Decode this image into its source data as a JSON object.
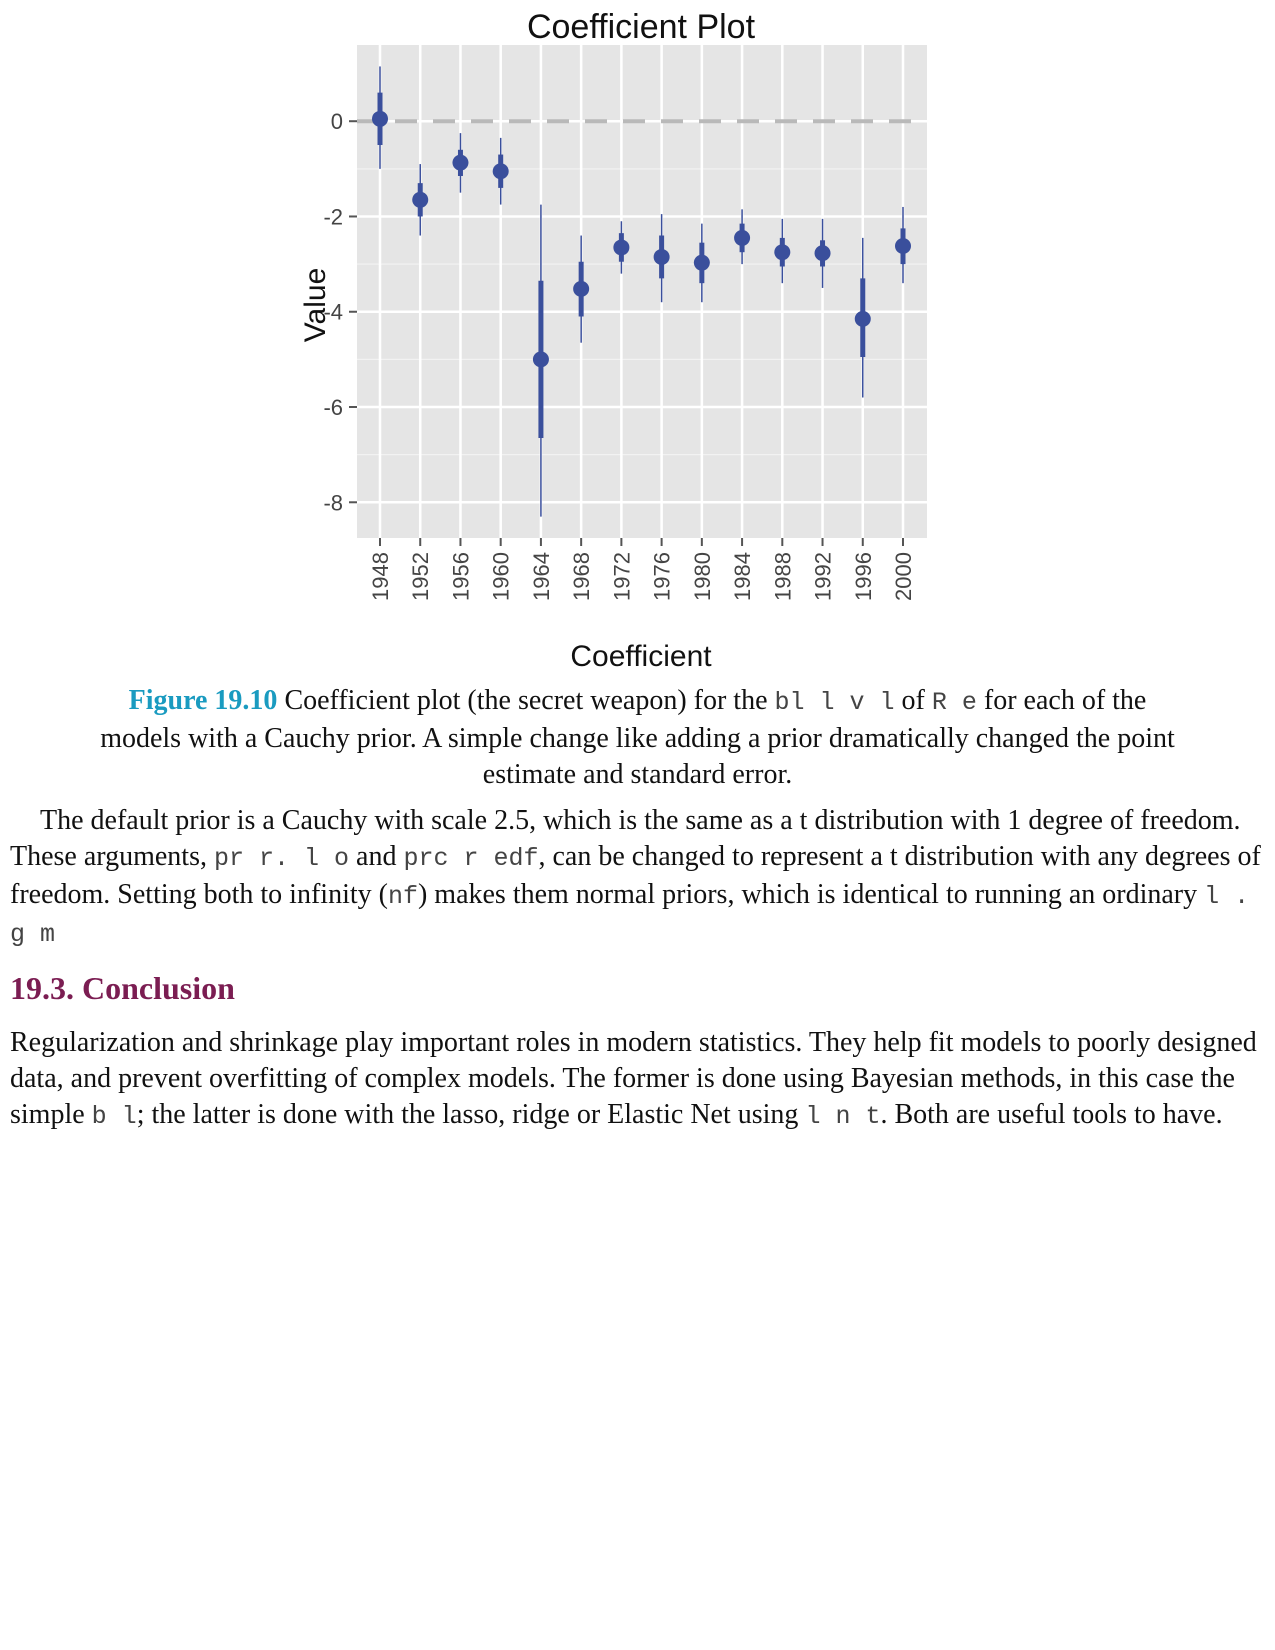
{
  "chart_data": {
    "type": "scatter",
    "title": "Coefficient Plot",
    "xlabel": "Coefficient",
    "ylabel": "Value",
    "categories": [
      "1948",
      "1952",
      "1956",
      "1960",
      "1964",
      "1968",
      "1972",
      "1976",
      "1980",
      "1984",
      "1988",
      "1992",
      "1996",
      "2000"
    ],
    "estimates": [
      0.05,
      -1.65,
      -0.87,
      -1.05,
      -5.0,
      -3.52,
      -2.65,
      -2.85,
      -2.97,
      -2.45,
      -2.75,
      -2.77,
      -4.15,
      -2.62
    ],
    "inner_interval": [
      [
        -0.5,
        0.6
      ],
      [
        -2.0,
        -1.3
      ],
      [
        -1.15,
        -0.6
      ],
      [
        -1.4,
        -0.7
      ],
      [
        -6.65,
        -3.35
      ],
      [
        -4.1,
        -2.95
      ],
      [
        -2.95,
        -2.35
      ],
      [
        -3.3,
        -2.4
      ],
      [
        -3.4,
        -2.55
      ],
      [
        -2.75,
        -2.15
      ],
      [
        -3.05,
        -2.45
      ],
      [
        -3.05,
        -2.5
      ],
      [
        -4.95,
        -3.3
      ],
      [
        -3.0,
        -2.25
      ]
    ],
    "outer_interval": [
      [
        -1.0,
        1.15
      ],
      [
        -2.4,
        -0.9
      ],
      [
        -1.5,
        -0.25
      ],
      [
        -1.75,
        -0.35
      ],
      [
        -8.3,
        -1.75
      ],
      [
        -4.65,
        -2.4
      ],
      [
        -3.2,
        -2.1
      ],
      [
        -3.8,
        -1.95
      ],
      [
        -3.8,
        -2.15
      ],
      [
        -3.0,
        -1.85
      ],
      [
        -3.4,
        -2.05
      ],
      [
        -3.5,
        -2.05
      ],
      [
        -5.8,
        -2.45
      ],
      [
        -3.4,
        -1.8
      ]
    ],
    "yticks": [
      0,
      -2,
      -4,
      -6,
      -8
    ],
    "ylim": [
      -8.75,
      1.6
    ],
    "reference_line": 0,
    "grid": true,
    "colors": {
      "point": "#3a4f9c",
      "panel": "#e5e5e5",
      "grid": "#ffffff",
      "refline": "#b9b9b9",
      "text": "#444444"
    }
  },
  "caption": {
    "label": "Figure 19.10",
    "text_before": " Coefficient plot (the secret weapon) for the ",
    "code1": "bl     l v l",
    "text_mid1": " of ",
    "code2": "R   e",
    "text_mid2": " for each of the",
    "line2": "models with a Cauchy prior. A simple change like adding a prior dramatically changed the point",
    "line3": "estimate and standard error."
  },
  "para1": {
    "t1": "The default prior is a Cauchy with scale 2.5, which is the same as a t distribution with 1 degree of freedom. These arguments, ",
    "c1": "pr   r.     l o",
    "t2": " and ",
    "c2": "prc r edf",
    "t3": ", can be changed to represent a t distribution with any degrees of freedom. Setting both to infinity (",
    "c3": "nf",
    "t4": ") makes them normal priors, which is identical to running an ordinary ",
    "c4": "l .       g                  m"
  },
  "section": {
    "title": "19.3. Conclusion"
  },
  "para2": {
    "t1": "Regularization and shrinkage play important roles in modern statistics. They help fit models to poorly designed data, and prevent overfitting of complex models. The former is done using Bayesian methods, in this case the simple ",
    "c1": "b         l",
    "t2": "; the latter is done with the lasso, ridge or Elastic Net using ",
    "c2": "l n t",
    "t3": ". Both are useful tools to have."
  }
}
